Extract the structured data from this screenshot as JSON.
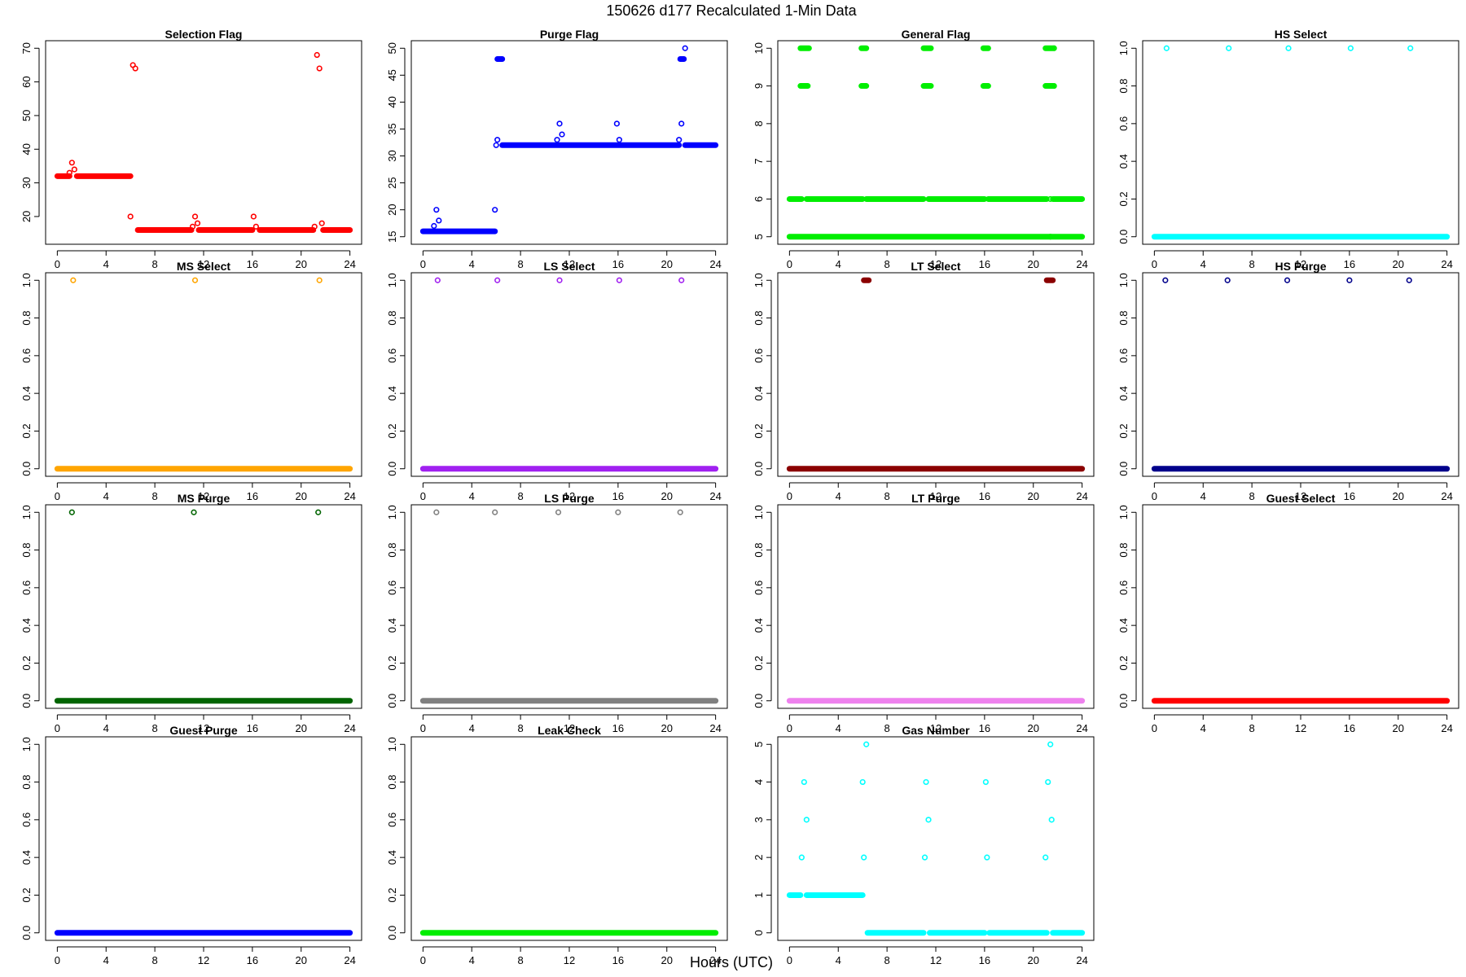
{
  "figure": {
    "title": "150626   d177   Recalculated 1-Min Data",
    "xlabel": "Hours (UTC)"
  },
  "chart_data": [
    {
      "type": "scatter",
      "title": "Selection Flag",
      "color": "#ff0000",
      "xlim": [
        0,
        24
      ],
      "ylim": [
        14,
        70
      ],
      "xticks": [
        0,
        4,
        8,
        12,
        16,
        20,
        24
      ],
      "yticks": [
        20,
        30,
        40,
        50,
        60,
        70
      ],
      "segments": [
        {
          "x0": 0,
          "x1": 1.0,
          "y": 32
        },
        {
          "x0": 1.6,
          "x1": 6.0,
          "y": 32
        },
        {
          "x0": 6.6,
          "x1": 11.0,
          "y": 16
        },
        {
          "x0": 11.6,
          "x1": 16.0,
          "y": 16
        },
        {
          "x0": 16.6,
          "x1": 21.0,
          "y": 16
        },
        {
          "x0": 21.8,
          "x1": 24,
          "y": 16
        }
      ],
      "points": [
        {
          "x": 1.0,
          "y": 33
        },
        {
          "x": 1.2,
          "y": 36
        },
        {
          "x": 1.4,
          "y": 34
        },
        {
          "x": 6.0,
          "y": 20
        },
        {
          "x": 6.2,
          "y": 65
        },
        {
          "x": 6.4,
          "y": 64
        },
        {
          "x": 11.1,
          "y": 17
        },
        {
          "x": 11.3,
          "y": 20
        },
        {
          "x": 11.5,
          "y": 18
        },
        {
          "x": 16.1,
          "y": 20
        },
        {
          "x": 16.3,
          "y": 17
        },
        {
          "x": 21.1,
          "y": 17
        },
        {
          "x": 21.3,
          "y": 68
        },
        {
          "x": 21.5,
          "y": 64
        },
        {
          "x": 21.7,
          "y": 18
        }
      ]
    },
    {
      "type": "scatter",
      "title": "Purge Flag",
      "color": "#0000ff",
      "xlim": [
        0,
        24
      ],
      "ylim": [
        15,
        50
      ],
      "xticks": [
        0,
        4,
        8,
        12,
        16,
        20,
        24
      ],
      "yticks": [
        15,
        20,
        25,
        30,
        35,
        40,
        45,
        50
      ],
      "segments": [
        {
          "x0": 0,
          "x1": 5.9,
          "y": 16
        },
        {
          "x0": 6.1,
          "x1": 6.5,
          "y": 48
        },
        {
          "x0": 6.5,
          "x1": 21.0,
          "y": 32
        },
        {
          "x0": 21.1,
          "x1": 21.4,
          "y": 48
        },
        {
          "x0": 21.5,
          "x1": 24,
          "y": 32
        }
      ],
      "points": [
        {
          "x": 0.9,
          "y": 17
        },
        {
          "x": 1.1,
          "y": 20
        },
        {
          "x": 1.3,
          "y": 18
        },
        {
          "x": 5.9,
          "y": 20
        },
        {
          "x": 6.0,
          "y": 32
        },
        {
          "x": 6.1,
          "y": 33
        },
        {
          "x": 11.0,
          "y": 33
        },
        {
          "x": 11.2,
          "y": 36
        },
        {
          "x": 11.4,
          "y": 34
        },
        {
          "x": 15.9,
          "y": 36
        },
        {
          "x": 16.1,
          "y": 33
        },
        {
          "x": 21.0,
          "y": 33
        },
        {
          "x": 21.2,
          "y": 36
        },
        {
          "x": 21.5,
          "y": 50
        }
      ]
    },
    {
      "type": "scatter",
      "title": "General Flag",
      "color": "#00ee00",
      "xlim": [
        0,
        24
      ],
      "ylim": [
        5,
        10
      ],
      "xticks": [
        0,
        4,
        8,
        12,
        16,
        20,
        24
      ],
      "yticks": [
        5,
        6,
        7,
        8,
        9,
        10
      ],
      "segments": [
        {
          "x0": 0,
          "x1": 1.0,
          "y": 6
        },
        {
          "x0": 1.4,
          "x1": 6.0,
          "y": 6
        },
        {
          "x0": 6.3,
          "x1": 11.0,
          "y": 6
        },
        {
          "x0": 11.4,
          "x1": 16.0,
          "y": 6
        },
        {
          "x0": 16.3,
          "x1": 21.1,
          "y": 6
        },
        {
          "x0": 21.6,
          "x1": 24,
          "y": 6
        },
        {
          "x0": 0,
          "x1": 24,
          "y": 5
        },
        {
          "x0": 0.9,
          "x1": 1.6,
          "y": 10
        },
        {
          "x0": 5.9,
          "x1": 6.3,
          "y": 10
        },
        {
          "x0": 11.0,
          "x1": 11.6,
          "y": 10
        },
        {
          "x0": 15.9,
          "x1": 16.3,
          "y": 10
        },
        {
          "x0": 21.0,
          "x1": 21.6,
          "y": 10
        },
        {
          "x0": 0.9,
          "x1": 1.5,
          "y": 9
        },
        {
          "x0": 5.9,
          "x1": 6.3,
          "y": 9
        },
        {
          "x0": 11.0,
          "x1": 11.6,
          "y": 9
        },
        {
          "x0": 15.9,
          "x1": 16.3,
          "y": 9
        },
        {
          "x0": 21.0,
          "x1": 21.6,
          "y": 9
        }
      ],
      "points": [
        {
          "x": 21.7,
          "y": 10
        },
        {
          "x": 21.7,
          "y": 9
        },
        {
          "x": 21.4,
          "y": 6
        },
        {
          "x": 21.4,
          "y": 5
        }
      ]
    },
    {
      "type": "scatter",
      "title": "HS Select",
      "color": "#00ffff",
      "xlim": [
        0,
        24
      ],
      "ylim": [
        0,
        1
      ],
      "xticks": [
        0,
        4,
        8,
        12,
        16,
        20,
        24
      ],
      "yticks": [
        0.0,
        0.2,
        0.4,
        0.6,
        0.8,
        1.0
      ],
      "segments": [
        {
          "x0": 0,
          "x1": 24,
          "y": 0
        }
      ],
      "points": [
        {
          "x": 1.0,
          "y": 1
        },
        {
          "x": 6.1,
          "y": 1
        },
        {
          "x": 11.0,
          "y": 1
        },
        {
          "x": 16.1,
          "y": 1
        },
        {
          "x": 21.0,
          "y": 1
        }
      ]
    },
    {
      "type": "scatter",
      "title": "MS Select",
      "color": "#ffa500",
      "xlim": [
        0,
        24
      ],
      "ylim": [
        0,
        1
      ],
      "xticks": [
        0,
        4,
        8,
        12,
        16,
        20,
        24
      ],
      "yticks": [
        0.0,
        0.2,
        0.4,
        0.6,
        0.8,
        1.0
      ],
      "segments": [
        {
          "x0": 0,
          "x1": 24,
          "y": 0
        }
      ],
      "points": [
        {
          "x": 1.3,
          "y": 1
        },
        {
          "x": 11.3,
          "y": 1
        },
        {
          "x": 21.5,
          "y": 1
        }
      ]
    },
    {
      "type": "scatter",
      "title": "LS Select",
      "color": "#a020f0",
      "xlim": [
        0,
        24
      ],
      "ylim": [
        0,
        1
      ],
      "xticks": [
        0,
        4,
        8,
        12,
        16,
        20,
        24
      ],
      "yticks": [
        0.0,
        0.2,
        0.4,
        0.6,
        0.8,
        1.0
      ],
      "segments": [
        {
          "x0": 0,
          "x1": 24,
          "y": 0
        }
      ],
      "points": [
        {
          "x": 1.2,
          "y": 1
        },
        {
          "x": 6.1,
          "y": 1
        },
        {
          "x": 11.2,
          "y": 1
        },
        {
          "x": 16.1,
          "y": 1
        },
        {
          "x": 21.2,
          "y": 1
        }
      ]
    },
    {
      "type": "scatter",
      "title": "LT Select",
      "color": "#8b0000",
      "xlim": [
        0,
        24
      ],
      "ylim": [
        0,
        1
      ],
      "xticks": [
        0,
        4,
        8,
        12,
        16,
        20,
        24
      ],
      "yticks": [
        0.0,
        0.2,
        0.4,
        0.6,
        0.8,
        1.0
      ],
      "segments": [
        {
          "x0": 0,
          "x1": 24,
          "y": 0
        },
        {
          "x0": 6.1,
          "x1": 6.5,
          "y": 1
        },
        {
          "x0": 21.1,
          "x1": 21.6,
          "y": 1
        }
      ],
      "points": []
    },
    {
      "type": "scatter",
      "title": "HS Purge",
      "color": "#00008b",
      "xlim": [
        0,
        24
      ],
      "ylim": [
        0,
        1
      ],
      "xticks": [
        0,
        4,
        8,
        12,
        16,
        20,
        24
      ],
      "yticks": [
        0.0,
        0.2,
        0.4,
        0.6,
        0.8,
        1.0
      ],
      "segments": [
        {
          "x0": 0,
          "x1": 24,
          "y": 0
        }
      ],
      "points": [
        {
          "x": 0.9,
          "y": 1
        },
        {
          "x": 6.0,
          "y": 1
        },
        {
          "x": 10.9,
          "y": 1
        },
        {
          "x": 16.0,
          "y": 1
        },
        {
          "x": 20.9,
          "y": 1
        }
      ]
    },
    {
      "type": "scatter",
      "title": "MS Purge",
      "color": "#006400",
      "xlim": [
        0,
        24
      ],
      "ylim": [
        0,
        1
      ],
      "xticks": [
        0,
        4,
        8,
        12,
        16,
        20,
        24
      ],
      "yticks": [
        0.0,
        0.2,
        0.4,
        0.6,
        0.8,
        1.0
      ],
      "segments": [
        {
          "x0": 0,
          "x1": 24,
          "y": 0
        }
      ],
      "points": [
        {
          "x": 1.2,
          "y": 1
        },
        {
          "x": 11.2,
          "y": 1
        },
        {
          "x": 21.4,
          "y": 1
        }
      ]
    },
    {
      "type": "scatter",
      "title": "LS Purge",
      "color": "#808080",
      "xlim": [
        0,
        24
      ],
      "ylim": [
        0,
        1
      ],
      "xticks": [
        0,
        4,
        8,
        12,
        16,
        20,
        24
      ],
      "yticks": [
        0.0,
        0.2,
        0.4,
        0.6,
        0.8,
        1.0
      ],
      "segments": [
        {
          "x0": 0,
          "x1": 24,
          "y": 0
        }
      ],
      "points": [
        {
          "x": 1.1,
          "y": 1
        },
        {
          "x": 5.9,
          "y": 1
        },
        {
          "x": 11.1,
          "y": 1
        },
        {
          "x": 16.0,
          "y": 1
        },
        {
          "x": 21.1,
          "y": 1
        }
      ]
    },
    {
      "type": "scatter",
      "title": "LT Purge",
      "color": "#ee82ee",
      "xlim": [
        0,
        24
      ],
      "ylim": [
        0,
        1
      ],
      "xticks": [
        0,
        4,
        8,
        12,
        16,
        20,
        24
      ],
      "yticks": [
        0.0,
        0.2,
        0.4,
        0.6,
        0.8,
        1.0
      ],
      "segments": [
        {
          "x0": 0,
          "x1": 24,
          "y": 0
        }
      ],
      "points": []
    },
    {
      "type": "scatter",
      "title": "Guest Select",
      "color": "#ff0000",
      "xlim": [
        0,
        24
      ],
      "ylim": [
        0,
        1
      ],
      "xticks": [
        0,
        4,
        8,
        12,
        16,
        20,
        24
      ],
      "yticks": [
        0.0,
        0.2,
        0.4,
        0.6,
        0.8,
        1.0
      ],
      "segments": [
        {
          "x0": 0,
          "x1": 24,
          "y": 0
        }
      ],
      "points": []
    },
    {
      "type": "scatter",
      "title": "Guest Purge",
      "color": "#0000ff",
      "xlim": [
        0,
        24
      ],
      "ylim": [
        0,
        1
      ],
      "xticks": [
        0,
        4,
        8,
        12,
        16,
        20,
        24
      ],
      "yticks": [
        0.0,
        0.2,
        0.4,
        0.6,
        0.8,
        1.0
      ],
      "segments": [
        {
          "x0": 0,
          "x1": 24,
          "y": 0
        }
      ],
      "points": []
    },
    {
      "type": "scatter",
      "title": "Leak Check",
      "color": "#00ee00",
      "xlim": [
        0,
        24
      ],
      "ylim": [
        0,
        1
      ],
      "xticks": [
        0,
        4,
        8,
        12,
        16,
        20,
        24
      ],
      "yticks": [
        0.0,
        0.2,
        0.4,
        0.6,
        0.8,
        1.0
      ],
      "segments": [
        {
          "x0": 0,
          "x1": 24,
          "y": 0
        }
      ],
      "points": []
    },
    {
      "type": "scatter",
      "title": "Gas Number",
      "color": "#00ffff",
      "xlim": [
        0,
        24
      ],
      "ylim": [
        0,
        5
      ],
      "xticks": [
        0,
        4,
        8,
        12,
        16,
        20,
        24
      ],
      "yticks": [
        0,
        1,
        2,
        3,
        4,
        5
      ],
      "segments": [
        {
          "x0": 0,
          "x1": 0.9,
          "y": 1
        },
        {
          "x0": 1.4,
          "x1": 6.0,
          "y": 1
        },
        {
          "x0": 6.4,
          "x1": 11.0,
          "y": 0
        },
        {
          "x0": 11.5,
          "x1": 16.0,
          "y": 0
        },
        {
          "x0": 16.4,
          "x1": 21.1,
          "y": 0
        },
        {
          "x0": 21.6,
          "x1": 24,
          "y": 0
        }
      ],
      "points": [
        {
          "x": 1.0,
          "y": 2
        },
        {
          "x": 1.2,
          "y": 4
        },
        {
          "x": 1.4,
          "y": 3
        },
        {
          "x": 6.0,
          "y": 4
        },
        {
          "x": 6.1,
          "y": 2
        },
        {
          "x": 6.3,
          "y": 5
        },
        {
          "x": 11.1,
          "y": 2
        },
        {
          "x": 11.2,
          "y": 4
        },
        {
          "x": 11.4,
          "y": 3
        },
        {
          "x": 16.1,
          "y": 4
        },
        {
          "x": 16.2,
          "y": 2
        },
        {
          "x": 21.0,
          "y": 2
        },
        {
          "x": 21.2,
          "y": 4
        },
        {
          "x": 21.4,
          "y": 5
        },
        {
          "x": 21.5,
          "y": 3
        }
      ]
    }
  ]
}
